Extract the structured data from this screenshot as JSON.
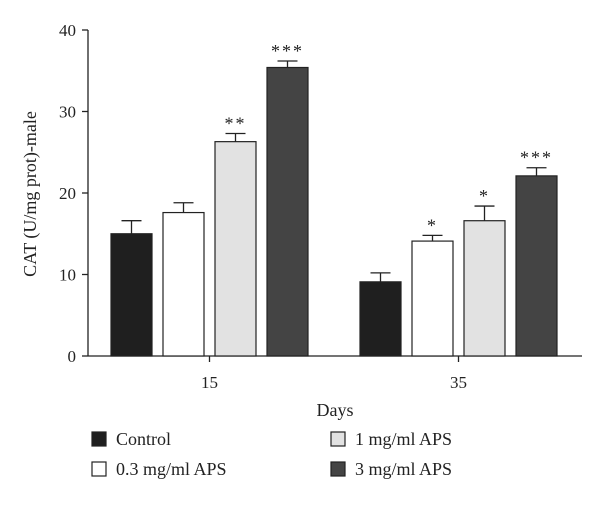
{
  "chart_data": {
    "type": "bar",
    "title": "",
    "xlabel": "Days",
    "ylabel": "CAT (U/mg prot)-male",
    "ylim": [
      0,
      40
    ],
    "yticks": [
      0,
      10,
      20,
      30,
      40
    ],
    "categories": [
      "15",
      "35"
    ],
    "legend_layout": "bottom, two columns",
    "series": [
      {
        "name": "Control",
        "color": "#1f1f1f",
        "values": [
          15.0,
          9.1
        ],
        "errors": [
          1.6,
          1.1
        ],
        "significance": [
          "",
          ""
        ]
      },
      {
        "name": "0.3 mg/ml APS",
        "color": "#ffffff",
        "values": [
          17.6,
          14.1
        ],
        "errors": [
          1.2,
          0.7
        ],
        "significance": [
          "",
          "*"
        ]
      },
      {
        "name": "1 mg/ml APS",
        "color": "#e2e2e2",
        "values": [
          26.3,
          16.6
        ],
        "errors": [
          1.0,
          1.8
        ],
        "significance": [
          "**",
          "*"
        ]
      },
      {
        "name": "3 mg/ml APS",
        "color": "#444444",
        "values": [
          35.4,
          22.1
        ],
        "errors": [
          0.8,
          1.0
        ],
        "significance": [
          "***",
          "***"
        ]
      }
    ]
  }
}
